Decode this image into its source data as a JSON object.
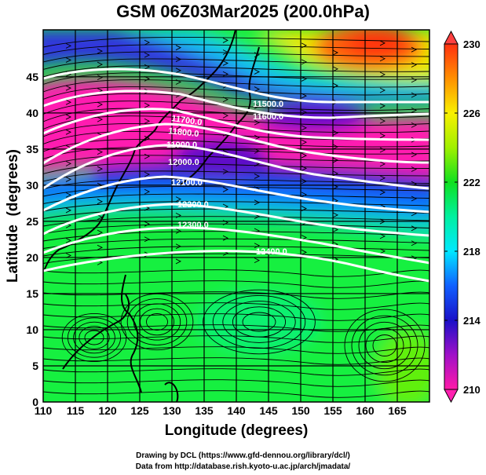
{
  "chart_data": {
    "type": "heatmap",
    "title": "GSM 06Z03Mar2025 (200.0hPa)",
    "xlabel": "Longitude (degrees)",
    "ylabel": "Latitude  (degrees)",
    "xlim": [
      110,
      170
    ],
    "ylim": [
      0,
      51.5
    ],
    "x_ticks": [
      "110",
      "115",
      "120",
      "125",
      "130",
      "135",
      "140",
      "145",
      "150",
      "155",
      "160",
      "165"
    ],
    "y_ticks": [
      "0",
      "5",
      "10",
      "15",
      "20",
      "25",
      "30",
      "35",
      "40",
      "45"
    ],
    "grid": true,
    "colorbar": {
      "range": [
        210,
        230
      ],
      "tick_labels": [
        "230",
        "226",
        "222",
        "218",
        "214",
        "210"
      ],
      "extend": "both",
      "colors": [
        "#ff1aa8",
        "#a010c8",
        "#1a10c8",
        "#1060ff",
        "#00e8ff",
        "#00f0a0",
        "#10e020",
        "#a0f000",
        "#f8f000",
        "#ff9000",
        "#ff3010"
      ]
    },
    "contours": {
      "labels": [
        "11500.0",
        "11600.0",
        "11700.0",
        "11800.0",
        "11900.0",
        "12000.0",
        "12100.0",
        "12200.0",
        "12300.0",
        "12400.0"
      ]
    },
    "credits": {
      "line1": "Drawing by DCL (https://www.gfd-dennou.org/library/dcl/)",
      "line2": "Data from http://database.rish.kyoto-u.ac.jp/arch/jmadata/"
    }
  }
}
